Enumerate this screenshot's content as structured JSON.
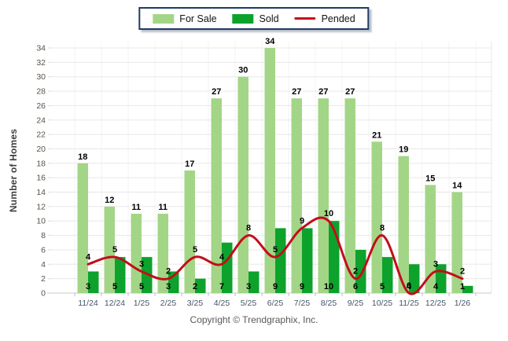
{
  "ylabel": "Number of Homes",
  "footer": "Copyright © Trendgraphix, Inc.",
  "colors": {
    "for_sale": "#A3D587",
    "sold": "#0CA22C",
    "pended": "#C40D1A",
    "legend_border": "#1E3C66",
    "grid": "#E8E8E8",
    "vgrid": "#F3F3F3",
    "axis_line": "#C9C9C9",
    "y_tick_text": "#5A5248",
    "x_tick_text": "#44546A",
    "bar_label_text": "#000000"
  },
  "chart_data": {
    "type": "bar",
    "categories": [
      "11/24",
      "12/24",
      "1/25",
      "2/25",
      "3/25",
      "4/25",
      "5/25",
      "6/25",
      "7/25",
      "8/25",
      "9/25",
      "10/25",
      "11/25",
      "12/25",
      "1/26"
    ],
    "series": [
      {
        "name": "For Sale",
        "type": "bar",
        "color": "#A3D587",
        "values": [
          18,
          12,
          11,
          11,
          17,
          27,
          30,
          34,
          27,
          27,
          27,
          21,
          19,
          15,
          14
        ]
      },
      {
        "name": "Sold",
        "type": "bar",
        "color": "#0CA22C",
        "values": [
          3,
          5,
          5,
          3,
          2,
          7,
          3,
          9,
          9,
          10,
          6,
          5,
          4,
          4,
          1
        ]
      },
      {
        "name": "Pended",
        "type": "line",
        "color": "#C40D1A",
        "values": [
          4,
          5,
          3,
          2,
          5,
          4,
          8,
          5,
          9,
          10,
          2,
          8,
          0,
          3,
          2
        ]
      }
    ],
    "title": "",
    "xlabel": "",
    "ylabel": "Number of Homes",
    "ylim": [
      0,
      34
    ],
    "ytick_step": 2,
    "grid": true,
    "legend_position": "top",
    "data_labels": true
  }
}
